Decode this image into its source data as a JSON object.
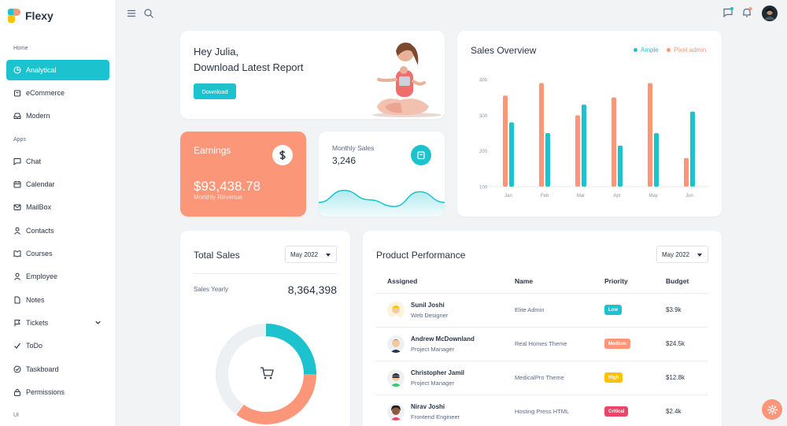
{
  "app": {
    "name": "Flexy"
  },
  "sidebar": {
    "sections": [
      "Home",
      "Apps"
    ],
    "items": [
      {
        "label": "Analytical",
        "icon": "pie-chart-icon",
        "active": true
      },
      {
        "label": "eCommerce",
        "icon": "shopping-bag-icon"
      },
      {
        "label": "Modern",
        "icon": "inbox-icon"
      },
      {
        "label": "Chat",
        "icon": "message-icon"
      },
      {
        "label": "Calendar",
        "icon": "calendar-icon"
      },
      {
        "label": "MailBox",
        "icon": "mail-icon"
      },
      {
        "label": "Contacts",
        "icon": "user-icon"
      },
      {
        "label": "Courses",
        "icon": "book-icon"
      },
      {
        "label": "Employee",
        "icon": "user-icon"
      },
      {
        "label": "Notes",
        "icon": "file-icon"
      },
      {
        "label": "Tickets",
        "icon": "flag-icon",
        "expandable": true
      },
      {
        "label": "ToDo",
        "icon": "check-icon"
      },
      {
        "label": "Taskboard",
        "icon": "check-circle-icon"
      },
      {
        "label": "Permissions",
        "icon": "lock-icon"
      }
    ],
    "truncated_label": "UI"
  },
  "greeting": {
    "title": "Hey Julia,",
    "subtitle": "Download Latest Report",
    "button": "Download"
  },
  "earnings": {
    "title": "Earnings",
    "value": "$93,438.78",
    "caption": "Monthly Revenue",
    "icon": "dollar-icon"
  },
  "monthly_sales": {
    "title": "Monthly Sales",
    "value": "3,246",
    "icon": "shopping-bag-icon",
    "trend": [
      0.35,
      0.8,
      0.45,
      0.2,
      0.75,
      0.35
    ]
  },
  "sales_overview": {
    "title": "Sales Overview",
    "legend": [
      {
        "name": "Ample",
        "color": "#1dc2cf"
      },
      {
        "name": "Pixel admin",
        "color": "#fb9678"
      }
    ]
  },
  "total_sales": {
    "title": "Total Sales",
    "period": "May 2022",
    "label": "Sales Yearly",
    "value": "8,364,398",
    "icon": "cart-icon"
  },
  "product_performance": {
    "title": "Product Performance",
    "period": "May 2022",
    "columns": [
      "Assigned",
      "Name",
      "Priority",
      "Budget"
    ],
    "rows": [
      {
        "name": "Sunil Joshi",
        "role": "Web Designer",
        "project": "Elite Admin",
        "priority": "Low",
        "color": "#1dc2cf",
        "budget": "$3.9k"
      },
      {
        "name": "Andrew McDownland",
        "role": "Project Manager",
        "project": "Real Homes Theme",
        "priority": "Medium",
        "color": "#fb9678",
        "budget": "$24.5k"
      },
      {
        "name": "Christopher Jamil",
        "role": "Project Manager",
        "project": "MedicalPro Theme",
        "priority": "High",
        "color": "#ffc107",
        "budget": "$12.8k"
      },
      {
        "name": "Nirav Joshi",
        "role": "Frontend Engineer",
        "project": "Hosting Press HTML",
        "priority": "Critical",
        "color": "#e9466a",
        "budget": "$2.4k"
      }
    ]
  },
  "chart_data": [
    {
      "type": "bar",
      "title": "Sales Overview",
      "categories": [
        "Jan",
        "Feb",
        "Mar",
        "Apr",
        "May",
        "Jun"
      ],
      "series": [
        {
          "name": "Pixel admin",
          "color": "#fb9678",
          "values": [
            355,
            390,
            300,
            350,
            390,
            180
          ]
        },
        {
          "name": "Ample",
          "color": "#1dc2cf",
          "values": [
            280,
            250,
            330,
            215,
            250,
            310
          ]
        }
      ],
      "yticks": [
        400,
        300,
        200,
        100
      ],
      "ylim": [
        100,
        400
      ],
      "grid": false,
      "legend": "top-right"
    },
    {
      "type": "pie",
      "donut": true,
      "series": [
        {
          "color": "#1dc2cf",
          "value": 25
        },
        {
          "color": "#fb9678",
          "value": 35
        },
        {
          "color": "#ecf0f2",
          "value": 40
        }
      ]
    }
  ]
}
